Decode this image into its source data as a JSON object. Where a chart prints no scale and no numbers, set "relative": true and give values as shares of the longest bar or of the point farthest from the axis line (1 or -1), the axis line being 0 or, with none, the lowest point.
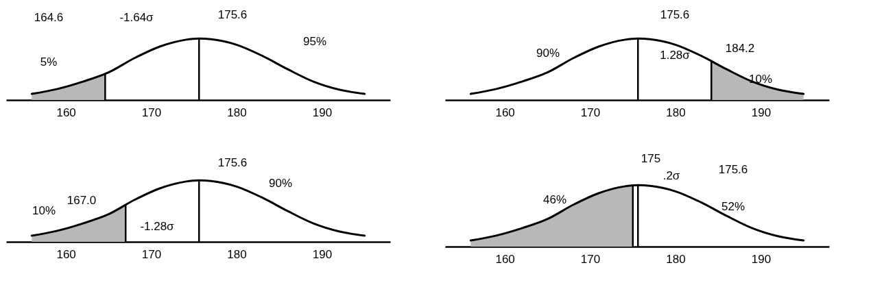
{
  "chart_data": [
    {
      "type": "line",
      "relative": true,
      "xlim": [
        153,
        198
      ],
      "xticks": [
        160,
        170,
        180,
        190
      ],
      "tick_labels": "x",
      "series": [
        {
          "type": "area",
          "color": "#b8b8b8",
          "x": [
            156,
            159,
            162,
            164.6
          ],
          "values": [
            0.1,
            0.18,
            0.3,
            0.43
          ]
        },
        {
          "color": "#000000",
          "x": [
            156,
            159,
            162,
            165,
            168,
            171,
            174,
            175.6,
            177,
            180,
            183,
            186,
            189,
            192,
            195
          ],
          "values": [
            0.1,
            0.18,
            0.3,
            0.45,
            0.68,
            0.87,
            0.98,
            1,
            0.99,
            0.9,
            0.72,
            0.5,
            0.3,
            0.17,
            0.1
          ]
        }
      ],
      "ref_lines": [
        {
          "axis": "x",
          "value": 164.6
        },
        {
          "axis": "x",
          "value": 175.6
        }
      ],
      "annotations": [
        "164.6",
        "-1.64σ",
        "175.6",
        "95%",
        "5%"
      ]
    },
    {
      "type": "line",
      "relative": true,
      "xlim": [
        153,
        198
      ],
      "xticks": [
        160,
        170,
        180,
        190
      ],
      "tick_labels": "x",
      "series": [
        {
          "type": "area",
          "color": "#b8b8b8",
          "x": [
            184.2,
            186,
            189,
            192,
            195
          ],
          "values": [
            0.63,
            0.5,
            0.3,
            0.17,
            0.1
          ]
        },
        {
          "color": "#000000",
          "x": [
            156,
            159,
            162,
            165,
            168,
            171,
            174,
            175.6,
            177,
            180,
            183,
            186,
            189,
            192,
            195
          ],
          "values": [
            0.1,
            0.18,
            0.3,
            0.45,
            0.68,
            0.87,
            0.98,
            1,
            0.99,
            0.9,
            0.72,
            0.5,
            0.3,
            0.17,
            0.1
          ]
        }
      ],
      "ref_lines": [
        {
          "axis": "x",
          "value": 175.6
        },
        {
          "axis": "x",
          "value": 184.2
        }
      ],
      "annotations": [
        "175.6",
        "184.2",
        "1.28σ",
        "90%",
        "10%"
      ]
    },
    {
      "type": "line",
      "relative": true,
      "xlim": [
        153,
        198
      ],
      "xticks": [
        160,
        170,
        180,
        190
      ],
      "tick_labels": "x",
      "series": [
        {
          "type": "area",
          "color": "#b8b8b8",
          "x": [
            156,
            159,
            162,
            165,
            167
          ],
          "values": [
            0.1,
            0.18,
            0.3,
            0.45,
            0.6
          ]
        },
        {
          "color": "#000000",
          "x": [
            156,
            159,
            162,
            165,
            168,
            171,
            174,
            175.6,
            177,
            180,
            183,
            186,
            189,
            192,
            195
          ],
          "values": [
            0.1,
            0.18,
            0.3,
            0.45,
            0.68,
            0.87,
            0.98,
            1,
            0.99,
            0.9,
            0.72,
            0.5,
            0.3,
            0.17,
            0.1
          ]
        }
      ],
      "ref_lines": [
        {
          "axis": "x",
          "value": 167.0
        },
        {
          "axis": "x",
          "value": 175.6
        }
      ],
      "annotations": [
        "167.0",
        "175.6",
        "-1.28σ",
        "10%",
        "90%"
      ]
    },
    {
      "type": "line",
      "relative": true,
      "xlim": [
        153,
        198
      ],
      "xticks": [
        160,
        170,
        180,
        190
      ],
      "tick_labels": "x",
      "series": [
        {
          "type": "area",
          "color": "#b8b8b8",
          "x": [
            156,
            159,
            162,
            165,
            168,
            171,
            174,
            175
          ],
          "values": [
            0.1,
            0.18,
            0.3,
            0.45,
            0.68,
            0.87,
            0.98,
            0.99
          ]
        },
        {
          "color": "#000000",
          "x": [
            156,
            159,
            162,
            165,
            168,
            171,
            174,
            175.6,
            177,
            180,
            183,
            186,
            189,
            192,
            195
          ],
          "values": [
            0.1,
            0.18,
            0.3,
            0.45,
            0.68,
            0.87,
            0.98,
            1,
            0.99,
            0.9,
            0.72,
            0.5,
            0.3,
            0.17,
            0.1
          ]
        }
      ],
      "ref_lines": [
        {
          "axis": "x",
          "value": 175
        },
        {
          "axis": "x",
          "value": 175.6
        }
      ],
      "annotations": [
        "175",
        "175.6",
        ".2σ",
        "46%",
        "52%"
      ]
    }
  ]
}
